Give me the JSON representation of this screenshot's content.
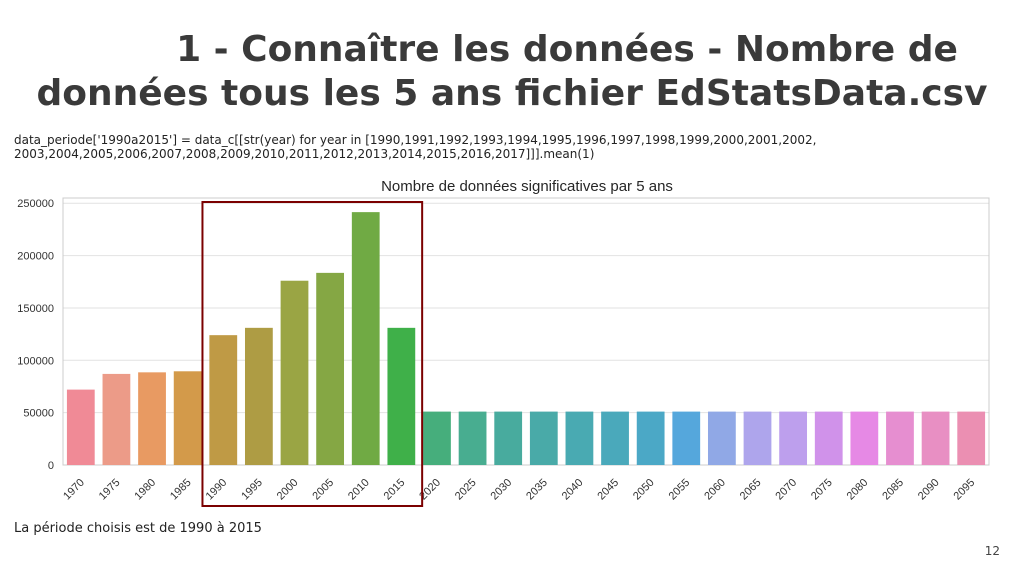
{
  "slide": {
    "title_line1": "1 - Connaître les données - Nombre de",
    "title_line2": "données tous les 5 ans fichier EdStatsData.csv",
    "code": "data_periode['1990a2015'] = data_c[[str(year) for year in [1990,1991,1992,1993,1994,1995,1996,1997,1998,1999,2000,2001,2002,\n2003,2004,2005,2006,2007,2008,2009,2010,2011,2012,2013,2014,2015,2016,2017]]].mean(1)",
    "footer": "La période choisis est de 1990 à 2015",
    "page_number": "12"
  },
  "chart_data": {
    "type": "bar",
    "title": "Nombre de données significatives par 5 ans",
    "xlabel": "",
    "ylabel": "",
    "categories": [
      "1970",
      "1975",
      "1980",
      "1985",
      "1990",
      "1995",
      "2000",
      "2005",
      "2010",
      "2015",
      "2020",
      "2025",
      "2030",
      "2035",
      "2040",
      "2045",
      "2050",
      "2055",
      "2060",
      "2065",
      "2070",
      "2075",
      "2080",
      "2085",
      "2090",
      "2095"
    ],
    "values": [
      72000,
      87000,
      88500,
      89500,
      124000,
      131000,
      176000,
      183500,
      241500,
      131000,
      51000,
      51000,
      51000,
      51000,
      51000,
      51000,
      51000,
      51000,
      51000,
      51000,
      51000,
      51000,
      51000,
      51000,
      51000,
      51000
    ],
    "colors": [
      "#f08a96",
      "#ec9b88",
      "#e89a62",
      "#d39a4a",
      "#bf9a45",
      "#ae9c44",
      "#9aa544",
      "#85a744",
      "#70aa44",
      "#3fb049",
      "#46ae7c",
      "#48ad90",
      "#48ab9e",
      "#49aaa8",
      "#49aab2",
      "#4aa9bb",
      "#4ba8c6",
      "#55a7dc",
      "#90a8e6",
      "#aea5ec",
      "#bd9fed",
      "#d092ea",
      "#e689e5",
      "#e68ed0",
      "#e88fc3",
      "#eb8fb2"
    ],
    "yticks": [
      0,
      50000,
      100000,
      150000,
      200000,
      250000
    ],
    "ylim": [
      0,
      255000
    ],
    "grid": true,
    "highlight": {
      "from": "1990",
      "to": "2015",
      "color": "#7b0000"
    }
  }
}
